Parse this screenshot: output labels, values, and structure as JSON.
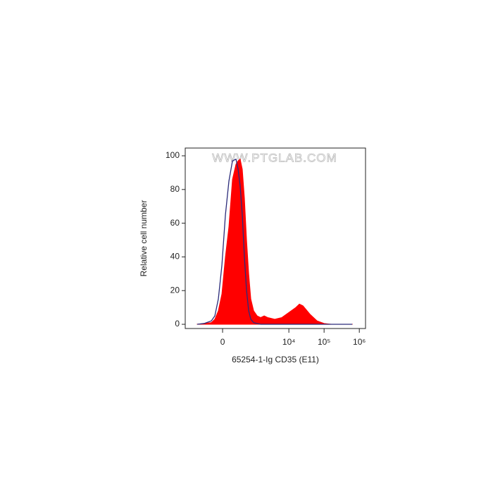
{
  "chart_data": {
    "type": "histogram-overlay",
    "watermark": "WWW.PTGLAB.COM",
    "x_label": "65254-1-Ig CD35 (E11)",
    "y_label": "Relative cell number",
    "x": [
      -665,
      -397,
      -212,
      -139,
      -74,
      -12,
      49,
      112,
      182,
      261,
      315,
      373,
      440,
      515,
      602,
      700,
      810,
      984,
      1244,
      1570,
      1988,
      2504,
      3970,
      6310,
      10000,
      15800,
      19900,
      25100,
      39700,
      63400,
      100000,
      159000,
      252000,
      631000
    ],
    "series": [
      {
        "color": "#ff0000",
        "style": "filled",
        "values": [
          0,
          0.5,
          1,
          3,
          8,
          18,
          40,
          58,
          86,
          95,
          97,
          98,
          92,
          75,
          50,
          30,
          15,
          8,
          5,
          4,
          5,
          4,
          3,
          4,
          7,
          10,
          12,
          11,
          6,
          2,
          0.5,
          0,
          0,
          0
        ]
      },
      {
        "color": "#2b2b7a",
        "style": "line",
        "values": [
          0,
          0.5,
          2,
          5,
          15,
          35,
          65,
          85,
          97,
          98,
          92,
          82,
          65,
          40,
          20,
          8,
          3,
          1,
          0.5,
          0,
          0,
          0,
          0,
          0,
          0,
          0,
          0,
          0,
          0,
          0,
          0,
          0,
          0,
          0
        ]
      }
    ],
    "xscale": "biexponential",
    "xlim": [
      -1500,
      1500000
    ],
    "xticks": [
      {
        "value": 0,
        "label": "0"
      },
      {
        "value": 10000,
        "label": "10⁴"
      },
      {
        "value": 100000,
        "label": "10⁵"
      },
      {
        "value": 1000000,
        "label": "10⁶"
      }
    ],
    "ylim": [
      -2.5,
      104.6
    ],
    "yticks": [
      0,
      20,
      40,
      60,
      80,
      100
    ]
  }
}
